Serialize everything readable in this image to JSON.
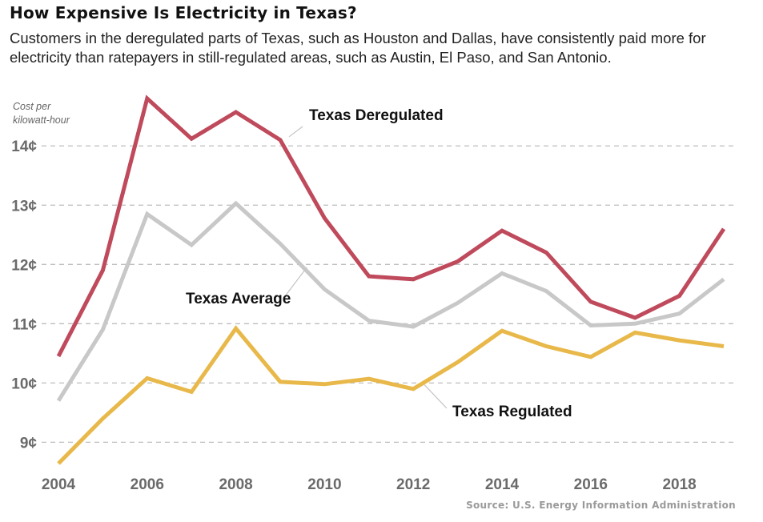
{
  "header": {
    "title": "How Expensive Is Electricity in Texas?",
    "subtitle": "Customers in the deregulated parts of Texas, such as Houston and Dallas, have consistently paid more for electricity than ratepayers in still-regulated areas, such as Austin, El Paso, and San Antonio."
  },
  "footer": {
    "source": "Source: U.S. Energy Information Administration"
  },
  "chart_data": {
    "type": "line",
    "title": "How Expensive Is Electricity in Texas?",
    "ylabel_lines": [
      "Cost per",
      "kilowatt-hour"
    ],
    "x": [
      2004,
      2005,
      2006,
      2007,
      2008,
      2009,
      2010,
      2011,
      2012,
      2013,
      2014,
      2015,
      2016,
      2017,
      2018,
      2019
    ],
    "xlim": [
      2004,
      2019
    ],
    "x_ticks": [
      2004,
      2006,
      2008,
      2010,
      2012,
      2014,
      2016,
      2018
    ],
    "x_tick_labels": [
      "2004",
      "2006",
      "2008",
      "2010",
      "2012",
      "2014",
      "2016",
      "2018"
    ],
    "ylim": [
      8.6,
      14.8
    ],
    "y_ticks": [
      9,
      10,
      11,
      12,
      13,
      14
    ],
    "y_tick_labels": [
      "9¢",
      "10¢",
      "11¢",
      "12¢",
      "13¢",
      "14¢"
    ],
    "grid": true,
    "series": [
      {
        "name": "Texas Deregulated",
        "color": "#bf4a5c",
        "values": [
          10.45,
          11.9,
          14.8,
          14.12,
          14.57,
          14.1,
          12.78,
          11.8,
          11.75,
          12.05,
          12.57,
          12.2,
          11.37,
          11.1,
          11.47,
          12.6
        ]
      },
      {
        "name": "Texas Average",
        "color": "#c8c8c8",
        "values": [
          9.7,
          10.9,
          12.85,
          12.33,
          13.03,
          12.35,
          11.58,
          11.05,
          10.95,
          11.35,
          11.85,
          11.55,
          10.97,
          11.0,
          11.17,
          11.75
        ]
      },
      {
        "name": "Texas Regulated",
        "color": "#e8b94a",
        "values": [
          8.64,
          9.4,
          10.08,
          9.85,
          10.92,
          10.02,
          9.98,
          10.07,
          9.9,
          10.35,
          10.88,
          10.62,
          10.44,
          10.85,
          10.72,
          10.62
        ]
      }
    ]
  }
}
